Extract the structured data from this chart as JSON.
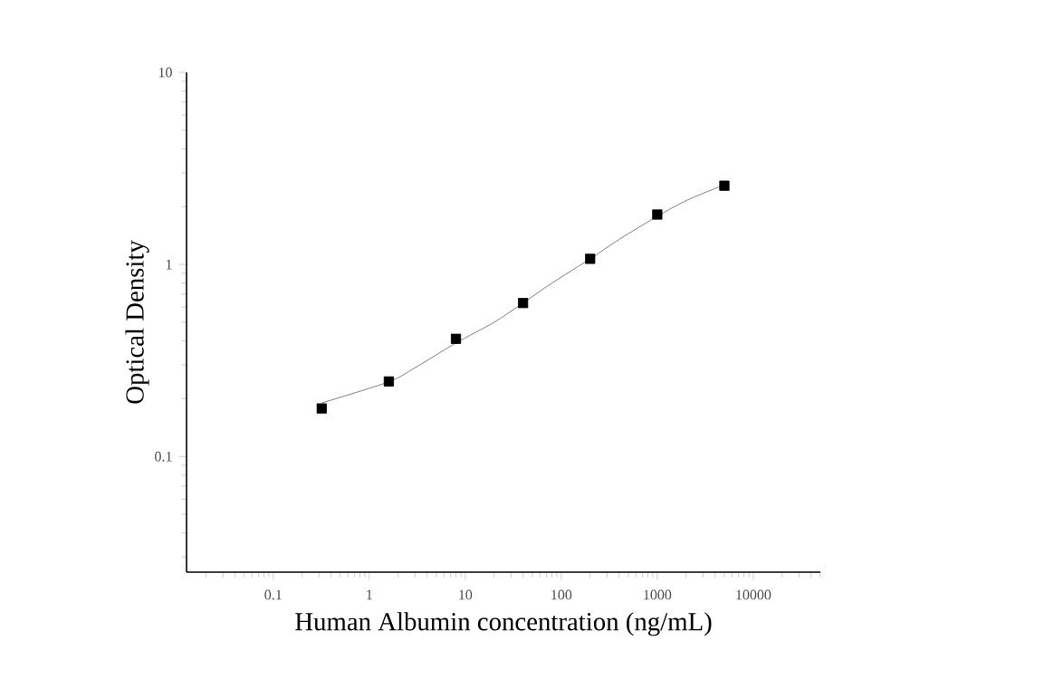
{
  "chart_data": {
    "type": "scatter",
    "xlabel": "Human Albumin concentration (ng/mL)",
    "ylabel": "Optical Density",
    "log": "xy",
    "xlim": [
      0.0125,
      50000
    ],
    "ylim": [
      0.025,
      10
    ],
    "xticks": [
      0.1,
      1,
      10,
      100,
      1000,
      10000
    ],
    "yticks": [
      0.1,
      1,
      10
    ],
    "grid": false,
    "marker": "square",
    "series": [
      {
        "color": "#000000",
        "x": [
          0.32,
          1.6,
          8,
          40,
          200,
          1000,
          5000
        ],
        "values": [
          0.178,
          0.246,
          0.41,
          0.63,
          1.07,
          1.82,
          2.57
        ]
      },
      {
        "type": "line",
        "color": "#7f7f7f",
        "marker": "none",
        "line_style": "solid",
        "x": [
          0.32,
          1.6,
          3,
          8,
          20,
          40,
          80,
          200,
          400,
          1000,
          2000,
          5000
        ],
        "values": [
          0.19,
          0.245,
          0.29,
          0.39,
          0.5,
          0.63,
          0.8,
          1.07,
          1.35,
          1.78,
          2.15,
          2.6
        ]
      }
    ]
  }
}
